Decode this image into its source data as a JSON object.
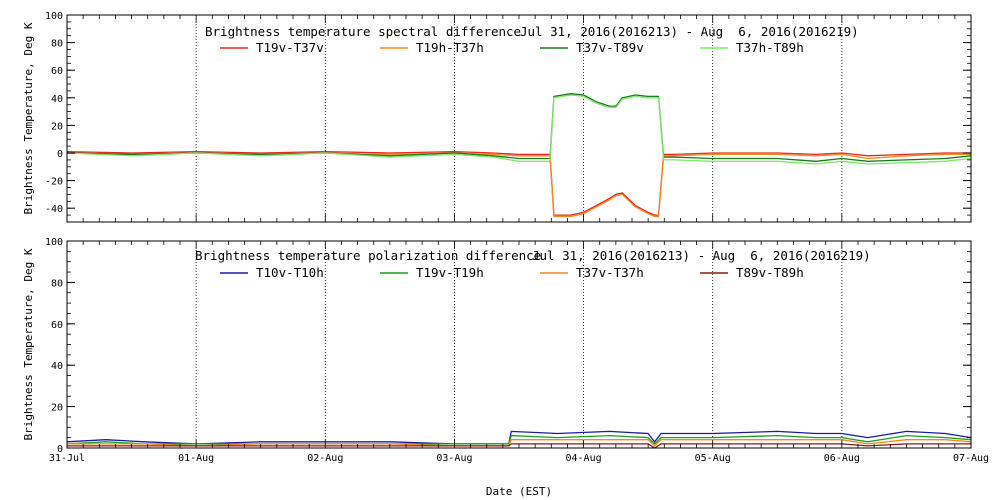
{
  "chart_data": [
    {
      "type": "line",
      "title": "Brightness temperature spectral difference",
      "date_range": "Jul 31, 2016(2016213) - Aug  6, 2016(2016219)",
      "ylabel": "Brightness Temperature, Deg K",
      "xlabel": "",
      "ylim": [
        -50,
        100
      ],
      "yticks": [
        -40,
        -20,
        0,
        20,
        40,
        60,
        80,
        100
      ],
      "xlim": [
        0,
        7
      ],
      "grid": true,
      "legend_position": "top",
      "series": [
        {
          "name": "T19v-T37v",
          "color": "#e8271c",
          "x": [
            0,
            0.5,
            1,
            1.5,
            2,
            2.5,
            3,
            3.3,
            3.5,
            3.74,
            3.77,
            3.9,
            4.0,
            4.1,
            4.2,
            4.25,
            4.3,
            4.4,
            4.5,
            4.55,
            4.58,
            4.62,
            4.7,
            5,
            5.5,
            5.8,
            6,
            6.2,
            6.5,
            6.8,
            7
          ],
          "y": [
            1,
            0,
            1,
            0,
            1,
            0,
            1,
            0,
            -1,
            -1,
            -45,
            -45,
            -43,
            -38,
            -33,
            -30,
            -29,
            -38,
            -43,
            -45,
            -45,
            -1,
            -1,
            0,
            0,
            -1,
            0,
            -2,
            -1,
            0,
            0
          ]
        },
        {
          "name": "T19h-T37h",
          "color": "#f28a1e",
          "x": [
            0,
            0.5,
            1,
            1.5,
            2,
            2.5,
            3,
            3.3,
            3.5,
            3.74,
            3.77,
            3.9,
            4.0,
            4.1,
            4.2,
            4.25,
            4.3,
            4.4,
            4.5,
            4.55,
            4.58,
            4.62,
            4.7,
            5,
            5.5,
            5.8,
            6,
            6.2,
            6.5,
            6.8,
            7
          ],
          "y": [
            0,
            -1,
            0,
            -1,
            0,
            -1,
            0,
            -1,
            -2,
            -2,
            -46,
            -46,
            -44,
            -39,
            -34,
            -31,
            -30,
            -39,
            -44,
            -46,
            -46,
            -2,
            -2,
            -1,
            -1,
            -2,
            -1,
            -4,
            -2,
            -1,
            -1
          ]
        },
        {
          "name": "T37v-T89v",
          "color": "#1a7a1a",
          "x": [
            0,
            0.5,
            1,
            1.5,
            2,
            2.5,
            3,
            3.3,
            3.5,
            3.74,
            3.77,
            3.9,
            4.0,
            4.1,
            4.2,
            4.25,
            4.3,
            4.4,
            4.5,
            4.55,
            4.58,
            4.62,
            4.7,
            5,
            5.5,
            5.8,
            6,
            6.2,
            6.5,
            6.8,
            7
          ],
          "y": [
            0,
            -1,
            0,
            -1,
            0,
            -2,
            0,
            -2,
            -4,
            -4,
            41,
            43,
            42,
            37,
            34,
            34,
            40,
            42,
            41,
            41,
            41,
            -3,
            -3,
            -4,
            -4,
            -6,
            -4,
            -6,
            -5,
            -4,
            -2
          ]
        },
        {
          "name": "T37h-T89h",
          "color": "#7de86a",
          "x": [
            0,
            0.5,
            1,
            1.5,
            2,
            2.5,
            3,
            3.3,
            3.5,
            3.74,
            3.77,
            3.9,
            4.0,
            4.1,
            4.2,
            4.25,
            4.3,
            4.4,
            4.5,
            4.55,
            4.58,
            4.62,
            4.7,
            5,
            5.5,
            5.8,
            6,
            6.2,
            6.5,
            6.8,
            7
          ],
          "y": [
            0,
            -2,
            0,
            -2,
            0,
            -3,
            -1,
            -3,
            -6,
            -6,
            40,
            42,
            41,
            36,
            33,
            33,
            39,
            41,
            40,
            40,
            40,
            -5,
            -5,
            -6,
            -6,
            -8,
            -6,
            -8,
            -7,
            -6,
            -4
          ]
        }
      ]
    },
    {
      "type": "line",
      "title": "Brightness temperature polarization difference",
      "date_range": "Jul 31, 2016(2016213) - Aug  6, 2016(2016219)",
      "ylabel": "Brightness Temperature, Deg K",
      "xlabel": "Date (EST)",
      "ylim": [
        0,
        100
      ],
      "yticks": [
        0,
        20,
        40,
        60,
        80,
        100
      ],
      "xlim": [
        0,
        7
      ],
      "x_tick_labels": [
        "31-Jul",
        "01-Aug",
        "02-Aug",
        "03-Aug",
        "04-Aug",
        "05-Aug",
        "06-Aug",
        "07-Aug"
      ],
      "grid": true,
      "legend_position": "top",
      "series": [
        {
          "name": "T10v-T10h",
          "color": "#1c1c9c",
          "x": [
            0,
            0.3,
            0.6,
            1,
            1.5,
            2,
            2.5,
            3,
            3.3,
            3.42,
            3.44,
            3.8,
            4.2,
            4.5,
            4.55,
            4.6,
            5,
            5.5,
            5.8,
            6,
            6.2,
            6.5,
            6.8,
            7
          ],
          "y": [
            3,
            4,
            3,
            2,
            3,
            3,
            3,
            2,
            2,
            2,
            8,
            7,
            8,
            7,
            3,
            7,
            7,
            8,
            7,
            7,
            5,
            8,
            7,
            5
          ]
        },
        {
          "name": "T19v-T19h",
          "color": "#1f9e1f",
          "x": [
            0,
            0.3,
            0.6,
            1,
            1.5,
            2,
            2.5,
            3,
            3.3,
            3.42,
            3.44,
            3.8,
            4.2,
            4.5,
            4.55,
            4.6,
            5,
            5.5,
            5.8,
            6,
            6.2,
            6.5,
            6.8,
            7
          ],
          "y": [
            2,
            3,
            2,
            2,
            2,
            2,
            2,
            2,
            2,
            2,
            6,
            5,
            6,
            5,
            2,
            5,
            5,
            6,
            5,
            5,
            3,
            6,
            5,
            4
          ]
        },
        {
          "name": "T37v-T37h",
          "color": "#f28a1e",
          "x": [
            0,
            0.3,
            0.6,
            1,
            1.5,
            2,
            2.5,
            3,
            3.3,
            3.42,
            3.44,
            3.8,
            4.2,
            4.5,
            4.55,
            4.6,
            5,
            5.5,
            5.8,
            6,
            6.2,
            6.5,
            6.8,
            7
          ],
          "y": [
            2,
            2,
            2,
            1,
            2,
            2,
            2,
            1,
            1,
            1,
            4,
            4,
            4,
            4,
            1,
            4,
            4,
            4,
            4,
            4,
            2,
            4,
            4,
            3
          ]
        },
        {
          "name": "T89v-T89h",
          "color": "#8b1a1a",
          "x": [
            0,
            0.3,
            0.6,
            1,
            1.5,
            2,
            2.5,
            3,
            3.3,
            3.42,
            3.44,
            3.8,
            4.2,
            4.5,
            4.55,
            4.6,
            5,
            5.5,
            5.8,
            6,
            6.2,
            6.5,
            6.8,
            7
          ],
          "y": [
            1,
            1,
            1,
            1,
            1,
            1,
            1,
            1,
            1,
            1,
            2,
            2,
            2,
            2,
            0,
            2,
            2,
            2,
            2,
            2,
            1,
            2,
            2,
            2
          ]
        }
      ]
    }
  ]
}
